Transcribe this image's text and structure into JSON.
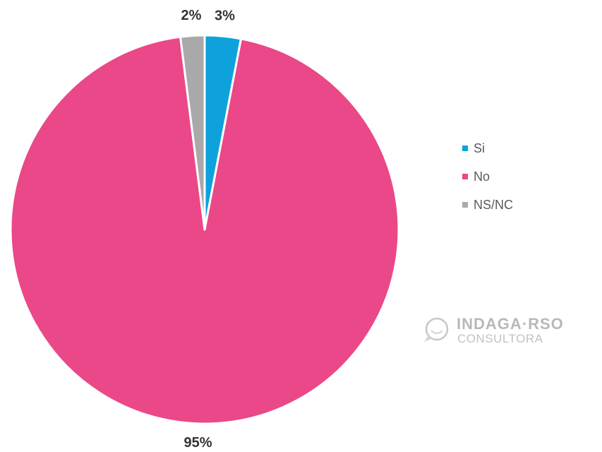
{
  "chart_data": {
    "type": "pie",
    "start_angle_deg": 0,
    "direction": "clockwise",
    "legend_position": "right",
    "slices": [
      {
        "label": "Si",
        "value": 3,
        "display": "3%",
        "color": "#0ea2dd"
      },
      {
        "label": "No",
        "value": 95,
        "display": "95%",
        "color": "#ea4888"
      },
      {
        "label": "NS/NC",
        "value": 2,
        "display": "2%",
        "color": "#a9a9a9"
      }
    ]
  },
  "watermark": {
    "name": "INDAGA·RSO",
    "subtitle": "CONSULTORA",
    "icon": "chat-bubble-icon"
  }
}
